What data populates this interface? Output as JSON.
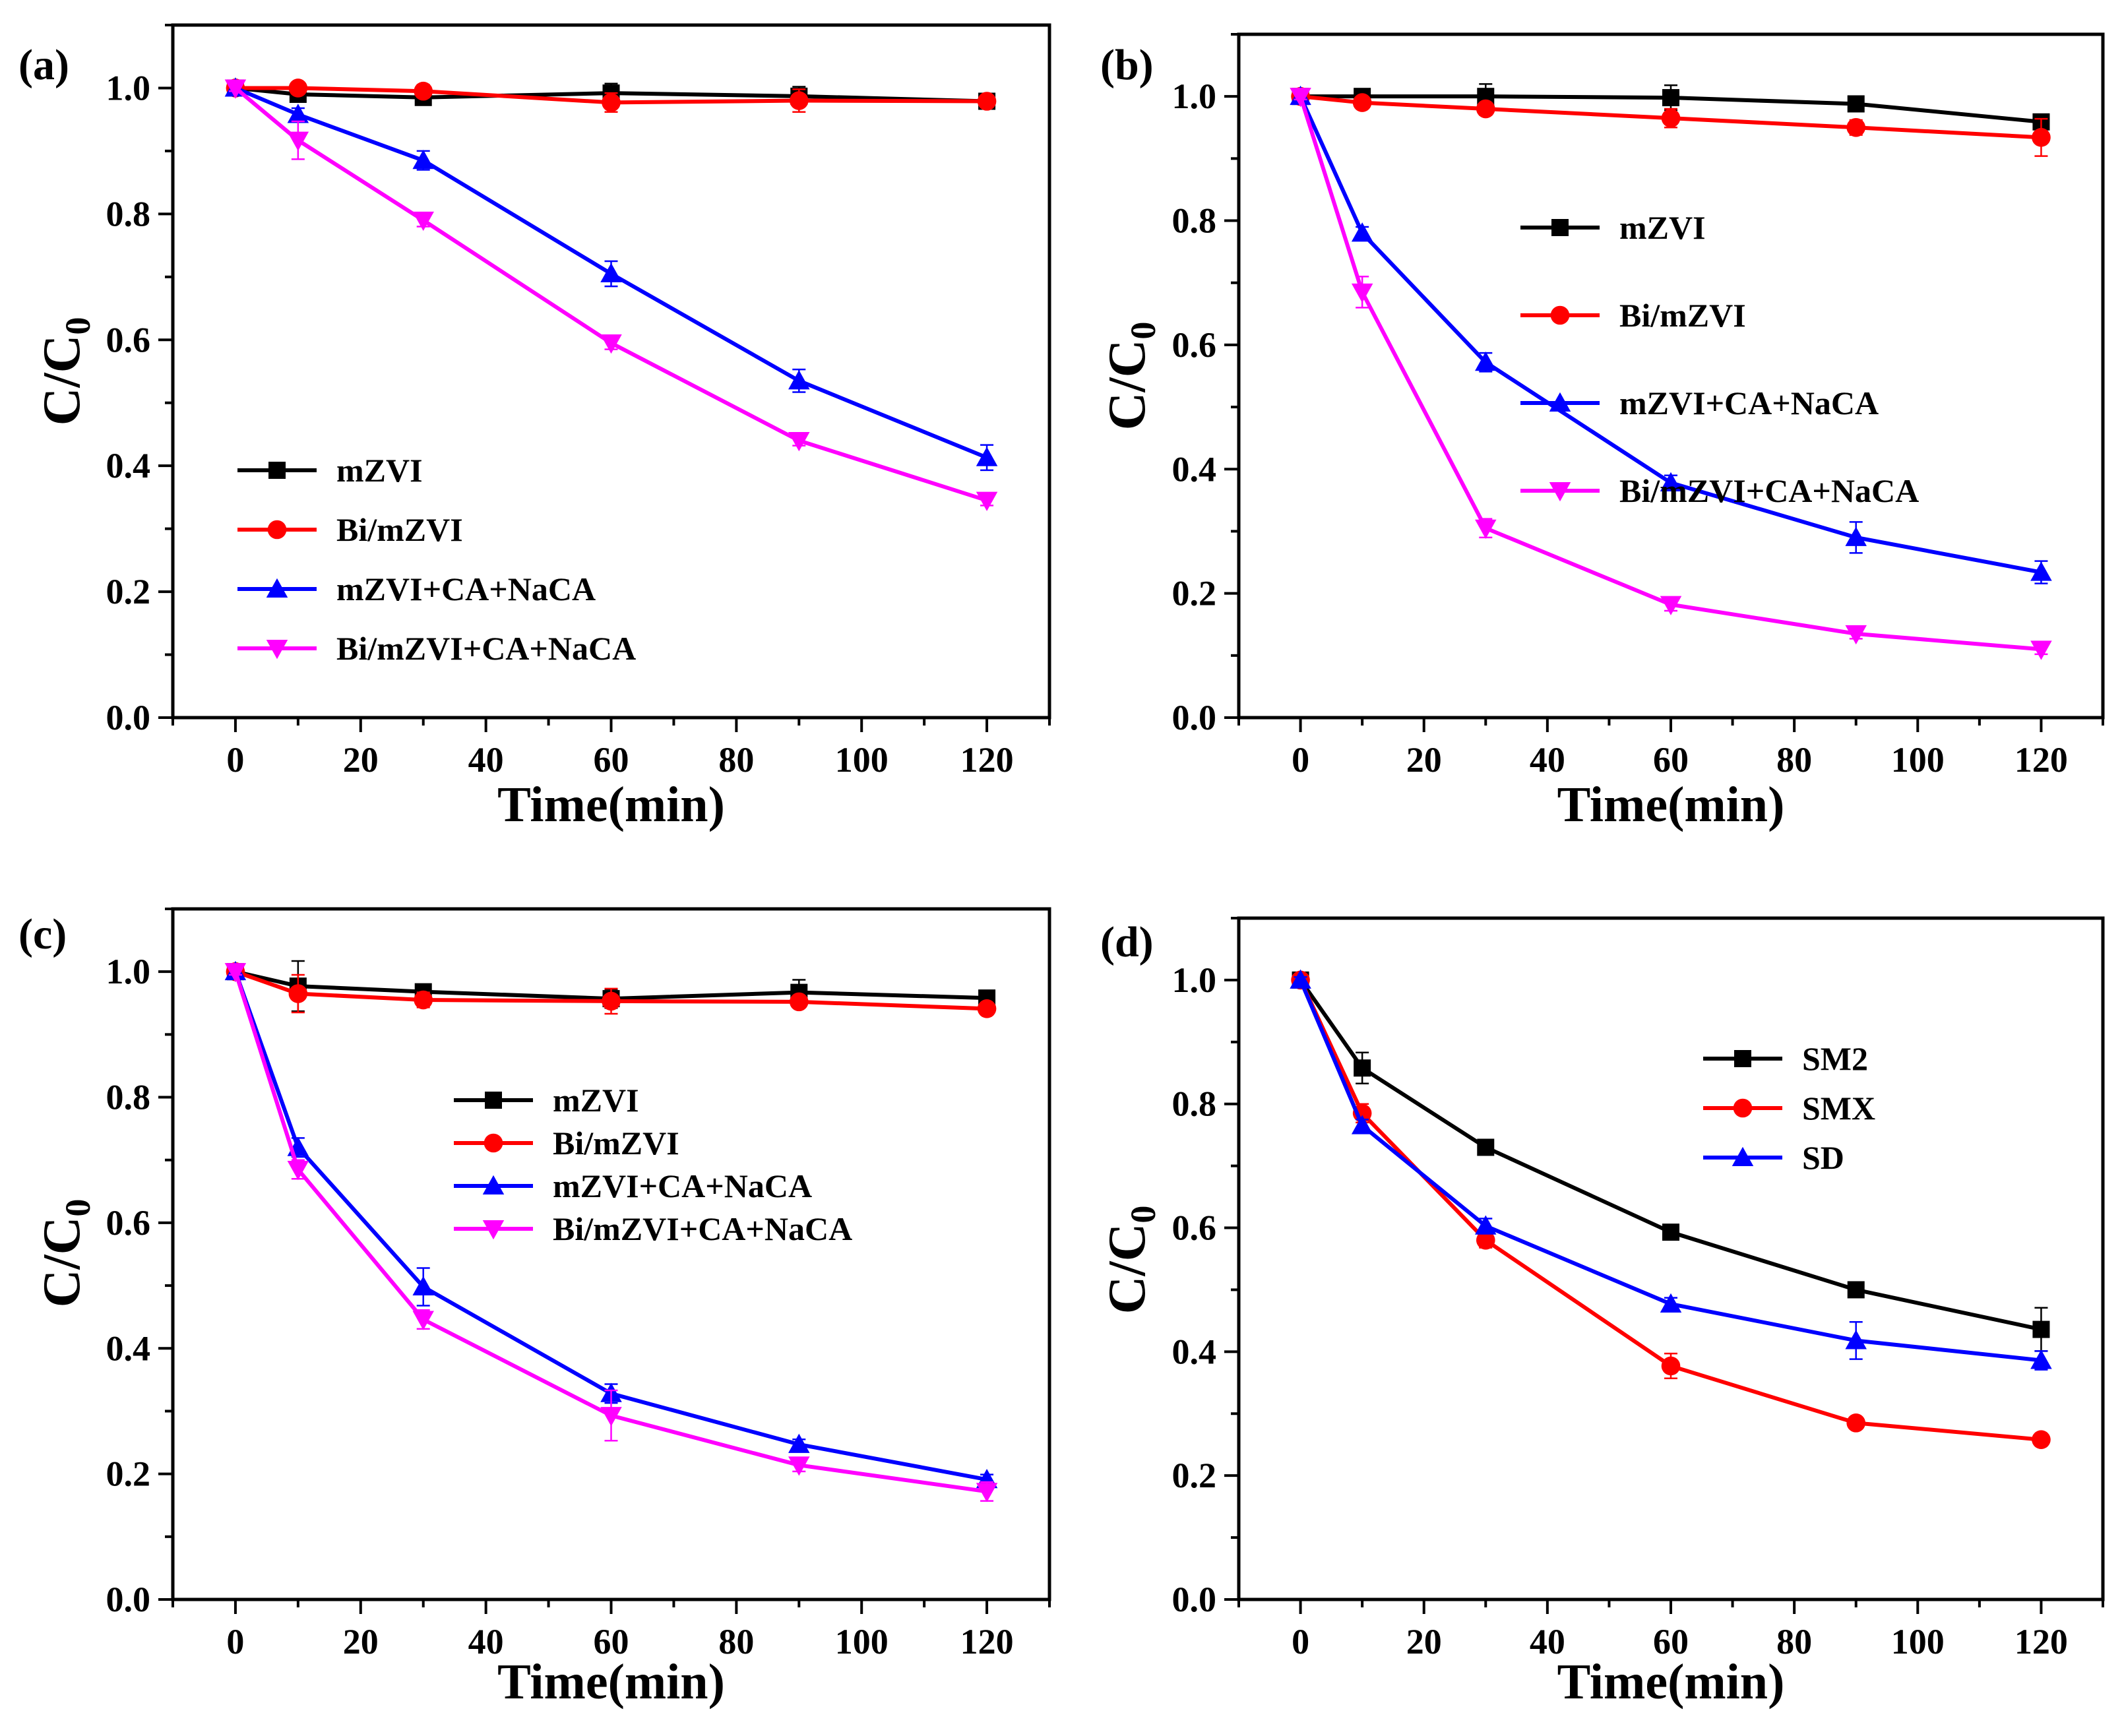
{
  "figure": "Four-panel C/C0 versus time degradation plot",
  "series_colors": {
    "mZVI": "#000000",
    "Bi/mZVI": "#ff0000",
    "mZVI+CA+NaCA": "#0000ff",
    "Bi/mZVI+CA+NaCA": "#ff00ff",
    "SM2": "#000000",
    "SMX": "#ff0000",
    "SD": "#0000ff"
  },
  "chart_data": [
    {
      "type": "line",
      "panel_label": "(a)",
      "xlabel": "Time(min)",
      "ylabel_main": "C/C",
      "ylabel_sub": "0",
      "xlim": [
        -10,
        130
      ],
      "ylim": [
        0,
        1.1
      ],
      "xticks": [
        0,
        20,
        40,
        60,
        80,
        100,
        120
      ],
      "yticks": [
        0.0,
        0.2,
        0.4,
        0.6,
        0.8,
        1.0
      ],
      "xtick_labels": [
        "0",
        "20",
        "40",
        "60",
        "80",
        "100",
        "120"
      ],
      "ytick_labels": [
        "0.0",
        "0.2",
        "0.4",
        "0.6",
        "0.8",
        "1.0"
      ],
      "legend_position": "lower-center",
      "x": [
        0,
        10,
        30,
        60,
        90,
        120
      ],
      "series": [
        {
          "name": "mZVI",
          "marker": "square",
          "color": "#000000",
          "values": [
            1.0,
            0.99,
            0.985,
            0.992,
            0.987,
            0.979
          ],
          "errors": [
            0.005,
            0.008,
            0.012,
            0.015,
            0.015,
            0.008
          ]
        },
        {
          "name": "Bi/mZVI",
          "marker": "circle",
          "color": "#ff0000",
          "values": [
            1.0,
            1.0,
            0.995,
            0.977,
            0.98,
            0.979
          ],
          "errors": [
            0.005,
            0.005,
            0.01,
            0.015,
            0.018,
            0.008
          ]
        },
        {
          "name": "mZVI+CA+NaCA",
          "marker": "triangle-up",
          "color": "#0000ff",
          "values": [
            1.0,
            0.958,
            0.885,
            0.705,
            0.535,
            0.413
          ],
          "errors": [
            0.005,
            0.01,
            0.015,
            0.02,
            0.018,
            0.02
          ]
        },
        {
          "name": "Bi/mZVI+CA+NaCA",
          "marker": "triangle-down",
          "color": "#ff00ff",
          "values": [
            1.0,
            0.917,
            0.79,
            0.595,
            0.44,
            0.345
          ],
          "errors": [
            0.005,
            0.03,
            0.01,
            0.01,
            0.008,
            0.008
          ]
        }
      ]
    },
    {
      "type": "line",
      "panel_label": "(b)",
      "xlabel": "Time(min)",
      "ylabel_main": "C/C",
      "ylabel_sub": "0",
      "xlim": [
        -10,
        130
      ],
      "ylim": [
        0,
        1.1
      ],
      "xticks": [
        0,
        20,
        40,
        60,
        80,
        100,
        120
      ],
      "yticks": [
        0.0,
        0.2,
        0.4,
        0.6,
        0.8,
        1.0
      ],
      "xtick_labels": [
        "0",
        "20",
        "40",
        "60",
        "80",
        "100",
        "120"
      ],
      "ytick_labels": [
        "0.0",
        "0.2",
        "0.4",
        "0.6",
        "0.8",
        "1.0"
      ],
      "legend_position": "upper-right",
      "x": [
        0,
        10,
        30,
        60,
        90,
        120
      ],
      "series": [
        {
          "name": "mZVI",
          "marker": "square",
          "color": "#000000",
          "values": [
            1.0,
            1.0,
            1.0,
            0.998,
            0.988,
            0.959
          ],
          "errors": [
            0.005,
            0.008,
            0.02,
            0.02,
            0.008,
            0.008
          ]
        },
        {
          "name": "Bi/mZVI",
          "marker": "circle",
          "color": "#ff0000",
          "values": [
            1.0,
            0.99,
            0.98,
            0.965,
            0.95,
            0.934
          ],
          "errors": [
            0.005,
            0.008,
            0.01,
            0.015,
            0.012,
            0.03
          ]
        },
        {
          "name": "mZVI+CA+NaCA",
          "marker": "triangle-up",
          "color": "#0000ff",
          "values": [
            1.0,
            0.78,
            0.572,
            0.378,
            0.29,
            0.234
          ],
          "errors": [
            0.005,
            0.01,
            0.015,
            0.012,
            0.025,
            0.018
          ]
        },
        {
          "name": "Bi/mZVI+CA+NaCA",
          "marker": "triangle-down",
          "color": "#ff00ff",
          "values": [
            1.0,
            0.685,
            0.305,
            0.182,
            0.135,
            0.11
          ],
          "errors": [
            0.005,
            0.025,
            0.015,
            0.01,
            0.008,
            0.008
          ]
        }
      ]
    },
    {
      "type": "line",
      "panel_label": "(c)",
      "xlabel": "Time(min)",
      "ylabel_main": "C/C",
      "ylabel_sub": "0",
      "xlim": [
        -10,
        130
      ],
      "ylim": [
        0,
        1.1
      ],
      "xticks": [
        0,
        20,
        40,
        60,
        80,
        100,
        120
      ],
      "yticks": [
        0.0,
        0.2,
        0.4,
        0.6,
        0.8,
        1.0
      ],
      "xtick_labels": [
        "0",
        "20",
        "40",
        "60",
        "80",
        "100",
        "120"
      ],
      "ytick_labels": [
        "0.0",
        "0.2",
        "0.4",
        "0.6",
        "0.8",
        "1.0"
      ],
      "legend_position": "center-right",
      "x": [
        0,
        10,
        30,
        60,
        90,
        120
      ],
      "series": [
        {
          "name": "mZVI",
          "marker": "square",
          "color": "#000000",
          "values": [
            1.0,
            0.977,
            0.968,
            0.957,
            0.967,
            0.958
          ],
          "errors": [
            0.005,
            0.04,
            0.01,
            0.015,
            0.02,
            0.008
          ]
        },
        {
          "name": "Bi/mZVI",
          "marker": "circle",
          "color": "#ff0000",
          "values": [
            1.0,
            0.965,
            0.955,
            0.953,
            0.952,
            0.941
          ],
          "errors": [
            0.005,
            0.03,
            0.012,
            0.02,
            0.008,
            0.008
          ]
        },
        {
          "name": "mZVI+CA+NaCA",
          "marker": "triangle-up",
          "color": "#0000ff",
          "values": [
            1.0,
            0.72,
            0.498,
            0.328,
            0.247,
            0.191
          ],
          "errors": [
            0.005,
            0.015,
            0.03,
            0.015,
            0.008,
            0.008
          ]
        },
        {
          "name": "Bi/mZVI+CA+NaCA",
          "marker": "triangle-down",
          "color": "#ff00ff",
          "values": [
            1.0,
            0.685,
            0.446,
            0.293,
            0.214,
            0.172
          ],
          "errors": [
            0.005,
            0.015,
            0.015,
            0.04,
            0.01,
            0.015
          ]
        }
      ]
    },
    {
      "type": "line",
      "panel_label": "(d)",
      "xlabel": "Time(min)",
      "ylabel_main": "C/C",
      "ylabel_sub": "0",
      "xlim": [
        -10,
        130
      ],
      "ylim": [
        0,
        1.1
      ],
      "xticks": [
        0,
        20,
        40,
        60,
        80,
        100,
        120
      ],
      "yticks": [
        0.0,
        0.2,
        0.4,
        0.6,
        0.8,
        1.0
      ],
      "xtick_labels": [
        "0",
        "20",
        "40",
        "60",
        "80",
        "100",
        "120"
      ],
      "ytick_labels": [
        "0.0",
        "0.2",
        "0.4",
        "0.6",
        "0.8",
        "1.0"
      ],
      "legend_position": "upper-right",
      "x": [
        0,
        10,
        30,
        60,
        90,
        120
      ],
      "series": [
        {
          "name": "SM2",
          "marker": "square",
          "color": "#000000",
          "values": [
            1.0,
            0.858,
            0.73,
            0.593,
            0.5,
            0.436
          ],
          "errors": [
            0.005,
            0.025,
            0.012,
            0.008,
            0.008,
            0.035
          ]
        },
        {
          "name": "SMX",
          "marker": "circle",
          "color": "#ff0000",
          "values": [
            1.0,
            0.785,
            0.58,
            0.377,
            0.285,
            0.258
          ],
          "errors": [
            0.005,
            0.015,
            0.012,
            0.02,
            0.008,
            0.008
          ]
        },
        {
          "name": "SD",
          "marker": "triangle-up",
          "color": "#0000ff",
          "values": [
            1.0,
            0.765,
            0.603,
            0.477,
            0.418,
            0.386
          ],
          "errors": [
            0.005,
            0.01,
            0.012,
            0.01,
            0.03,
            0.015
          ]
        }
      ]
    }
  ]
}
